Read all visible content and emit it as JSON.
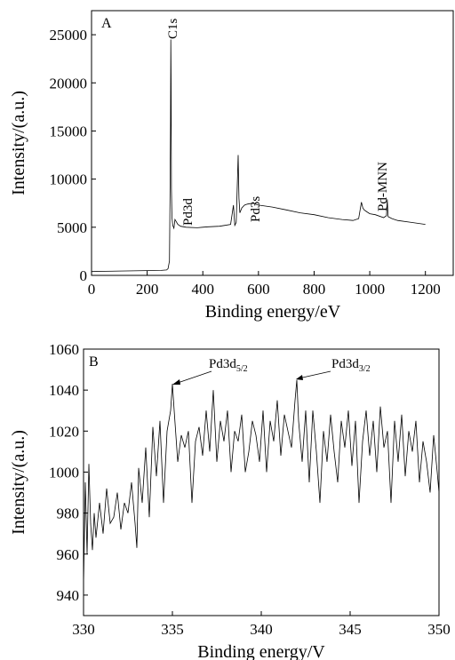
{
  "chart_data": [
    {
      "type": "line",
      "panel_label": "A",
      "xlabel": "Binding energy/eV",
      "ylabel": "Intensity/(a.u.)",
      "xlim": [
        0,
        1300
      ],
      "ylim": [
        0,
        27500
      ],
      "xticks": [
        0,
        200,
        400,
        600,
        800,
        1000,
        1200
      ],
      "yticks": [
        0,
        5000,
        10000,
        15000,
        20000,
        25000
      ],
      "grid": false,
      "series": [
        {
          "x": [
            0,
            50,
            100,
            150,
            200,
            250,
            270,
            275,
            280,
            282,
            284,
            285,
            286,
            287,
            289,
            292,
            296,
            300,
            310,
            320,
            340,
            380,
            400,
            420,
            460,
            480,
            500,
            510,
            515,
            520,
            527,
            530,
            533,
            540,
            550,
            560,
            580,
            600,
            650,
            700,
            750,
            800,
            850,
            900,
            940,
            960,
            970,
            975,
            980,
            990,
            1000,
            1020,
            1050,
            1060,
            1063,
            1066,
            1080,
            1100,
            1150,
            1200
          ],
          "y": [
            400,
            420,
            450,
            470,
            500,
            520,
            560,
            700,
            1500,
            8000,
            16000,
            24500,
            20500,
            9000,
            6000,
            5200,
            4900,
            5800,
            5300,
            5100,
            5000,
            4950,
            5000,
            5050,
            5100,
            5200,
            5300,
            7300,
            5200,
            5500,
            12500,
            8000,
            6500,
            7000,
            7300,
            7400,
            7500,
            7300,
            7100,
            6800,
            6500,
            6300,
            6000,
            5800,
            5700,
            5900,
            7600,
            7000,
            6800,
            6600,
            6400,
            6300,
            6000,
            6200,
            7900,
            6100,
            5900,
            5700,
            5500,
            5300
          ]
        }
      ],
      "annotations": [
        "C1s",
        "Pd3d",
        "Pd3s",
        "Pd-MNN"
      ]
    },
    {
      "type": "line",
      "panel_label": "B",
      "xlabel": "Binding energy/V",
      "ylabel": "Intensity/(a.u.)",
      "xlim": [
        330,
        350
      ],
      "ylim": [
        930,
        1060
      ],
      "xticks": [
        330,
        335,
        340,
        345,
        350
      ],
      "yticks": [
        940,
        960,
        980,
        1000,
        1020,
        1040,
        1060
      ],
      "grid": false,
      "series": [
        {
          "x": [
            330,
            330.1,
            330.2,
            330.3,
            330.4,
            330.5,
            330.6,
            330.7,
            330.9,
            331.1,
            331.3,
            331.5,
            331.7,
            331.9,
            332.1,
            332.3,
            332.5,
            332.7,
            332.9,
            333.0,
            333.1,
            333.3,
            333.5,
            333.7,
            333.9,
            334.1,
            334.3,
            334.5,
            334.7,
            334.9,
            335.0,
            335.1,
            335.3,
            335.5,
            335.7,
            335.9,
            336.1,
            336.3,
            336.5,
            336.7,
            336.9,
            337.1,
            337.3,
            337.5,
            337.7,
            337.9,
            338.1,
            338.3,
            338.5,
            338.7,
            338.9,
            339.1,
            339.3,
            339.5,
            339.7,
            339.9,
            340.1,
            340.3,
            340.5,
            340.7,
            340.9,
            341.1,
            341.3,
            341.5,
            341.7,
            341.9,
            342.0,
            342.1,
            342.3,
            342.5,
            342.7,
            342.9,
            343.1,
            343.3,
            343.5,
            343.7,
            343.9,
            344.1,
            344.3,
            344.5,
            344.7,
            344.9,
            345.1,
            345.3,
            345.5,
            345.7,
            345.9,
            346.1,
            346.3,
            346.5,
            346.7,
            346.9,
            347.1,
            347.3,
            347.5,
            347.7,
            347.9,
            348.1,
            348.3,
            348.5,
            348.7,
            348.9,
            349.1,
            349.3,
            349.5,
            349.7,
            349.9,
            350
          ],
          "y": [
            945,
            995,
            960,
            1004,
            975,
            962,
            980,
            968,
            985,
            970,
            992,
            975,
            978,
            990,
            972,
            985,
            980,
            995,
            975,
            963,
            1002,
            985,
            1012,
            978,
            1022,
            998,
            1025,
            985,
            1020,
            1030,
            1043,
            1030,
            1005,
            1018,
            1012,
            1020,
            985,
            1015,
            1022,
            1008,
            1030,
            1010,
            1040,
            1005,
            1025,
            1015,
            1030,
            1000,
            1020,
            1015,
            1028,
            1000,
            1010,
            1025,
            1018,
            1005,
            1030,
            1000,
            1025,
            1015,
            1035,
            1008,
            1028,
            1020,
            1012,
            1035,
            1045,
            1025,
            1005,
            1030,
            995,
            1030,
            1010,
            985,
            1020,
            1005,
            1028,
            1010,
            995,
            1025,
            1012,
            1030,
            1003,
            1025,
            985,
            1015,
            1030,
            1008,
            1025,
            1000,
            1032,
            1012,
            1020,
            985,
            1025,
            1005,
            1028,
            998,
            1020,
            1010,
            1025,
            995,
            1015,
            1005,
            990,
            1018,
            1000,
            990
          ]
        }
      ],
      "annotations": [
        "Pd3d5/2",
        "Pd3d3/2"
      ]
    }
  ]
}
